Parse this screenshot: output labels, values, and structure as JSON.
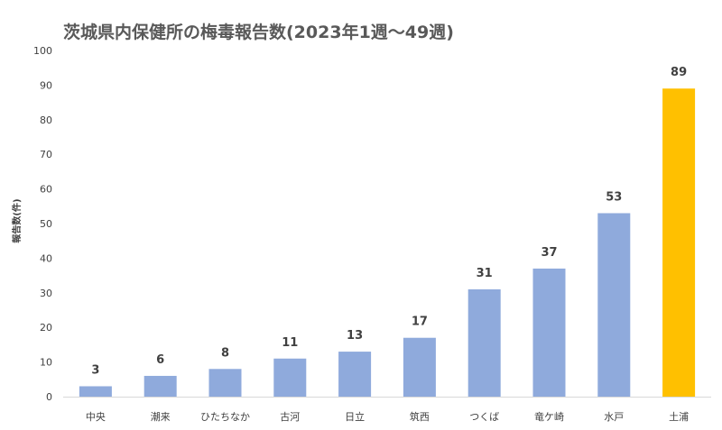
{
  "chart_data": {
    "type": "bar",
    "title": "茨城県内保健所の梅毒報告数(2023年1週～49週)",
    "xlabel": "",
    "ylabel": "報告数(件)",
    "ylim": [
      0,
      100
    ],
    "yticks": [
      0,
      10,
      20,
      30,
      40,
      50,
      60,
      70,
      80,
      90,
      100
    ],
    "categories": [
      "中央",
      "潮来",
      "ひたちなか",
      "古河",
      "日立",
      "筑西",
      "つくば",
      "竜ケ崎",
      "水戸",
      "土浦"
    ],
    "values": [
      3,
      6,
      8,
      11,
      13,
      17,
      31,
      37,
      53,
      89
    ],
    "grid": false,
    "legend": "none",
    "colors": {
      "bar": "#8faadc",
      "highlight": "#ffc000",
      "highlight_category": "土浦"
    }
  }
}
